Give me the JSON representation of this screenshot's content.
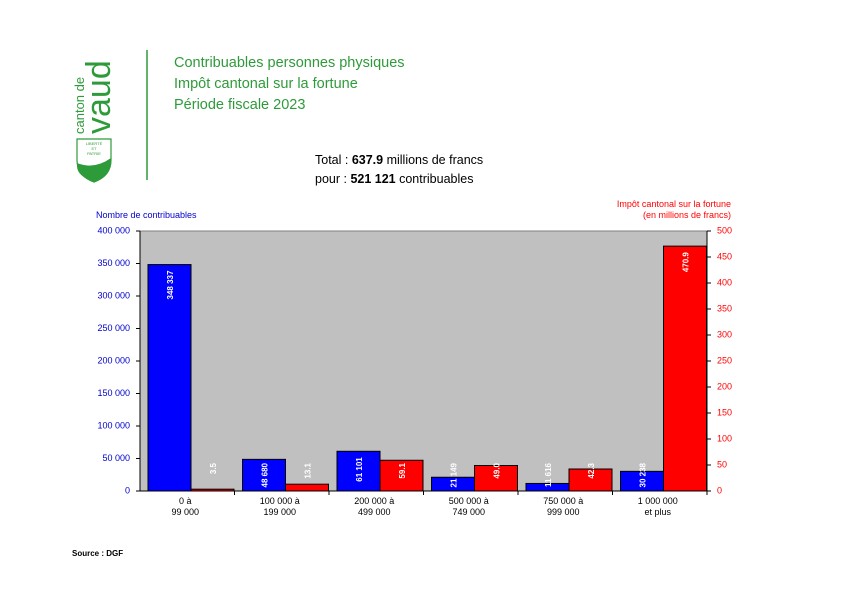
{
  "logo": {
    "line1": "canton de",
    "line2": "vaud",
    "motto": [
      "LIBERTÉ",
      "ET",
      "PATRIE"
    ]
  },
  "chart_data": {
    "type": "bar",
    "title": [
      "Contribuables personnes physiques",
      "Impôt cantonal sur la fortune",
      "Période fiscale 2023"
    ],
    "summary": {
      "total_prefix": "Total : ",
      "total_value": "637.9",
      "total_suffix": " millions de francs",
      "count_prefix": "pour : ",
      "count_value": "521 121",
      "count_suffix": " contribuables"
    },
    "y_label": "Nombre de contribuables",
    "y2_label": [
      "Impôt cantonal sur la fortune",
      "(en millions de francs)"
    ],
    "source": "Source : DGF",
    "categories": [
      [
        "0 à",
        "99 000"
      ],
      [
        "100 000 à",
        "199 000"
      ],
      [
        "200 000 à",
        "499 000"
      ],
      [
        "500 000 à",
        "749 000"
      ],
      [
        "750 000 à",
        "999 000"
      ],
      [
        "1 000 000",
        "et plus"
      ]
    ],
    "series": [
      {
        "name": "Nombre de contribuables",
        "color": "#0000ff",
        "axis": "y",
        "values": [
          348337,
          48680,
          61101,
          21149,
          11616,
          30238
        ],
        "value_labels": [
          "348 337",
          "48 680",
          "61 101",
          "21 149",
          "11 616",
          "30 238"
        ]
      },
      {
        "name": "Impôt cantonal sur la fortune",
        "color": "#ff0000",
        "axis": "y2",
        "values": [
          3.5,
          13.1,
          59.1,
          49.0,
          42.3,
          470.9
        ],
        "value_labels": [
          "3.5",
          "13.1",
          "59.1",
          "49.0",
          "42.3",
          "470.9"
        ]
      }
    ],
    "ylim": [
      0,
      400000
    ],
    "yticks": [
      {
        "value": 0,
        "label": "0"
      },
      {
        "value": 50000,
        "label": "50 000"
      },
      {
        "value": 100000,
        "label": "100 000"
      },
      {
        "value": 150000,
        "label": "150 000"
      },
      {
        "value": 200000,
        "label": "200 000"
      },
      {
        "value": 250000,
        "label": "250 000"
      },
      {
        "value": 300000,
        "label": "300 000"
      },
      {
        "value": 350000,
        "label": "350 000"
      },
      {
        "value": 400000,
        "label": "400 000"
      }
    ],
    "y2lim": [
      0,
      500
    ],
    "y2ticks": [
      0,
      50,
      100,
      150,
      200,
      250,
      300,
      350,
      400,
      450,
      500
    ],
    "plot_background": "#c0c0c0"
  }
}
